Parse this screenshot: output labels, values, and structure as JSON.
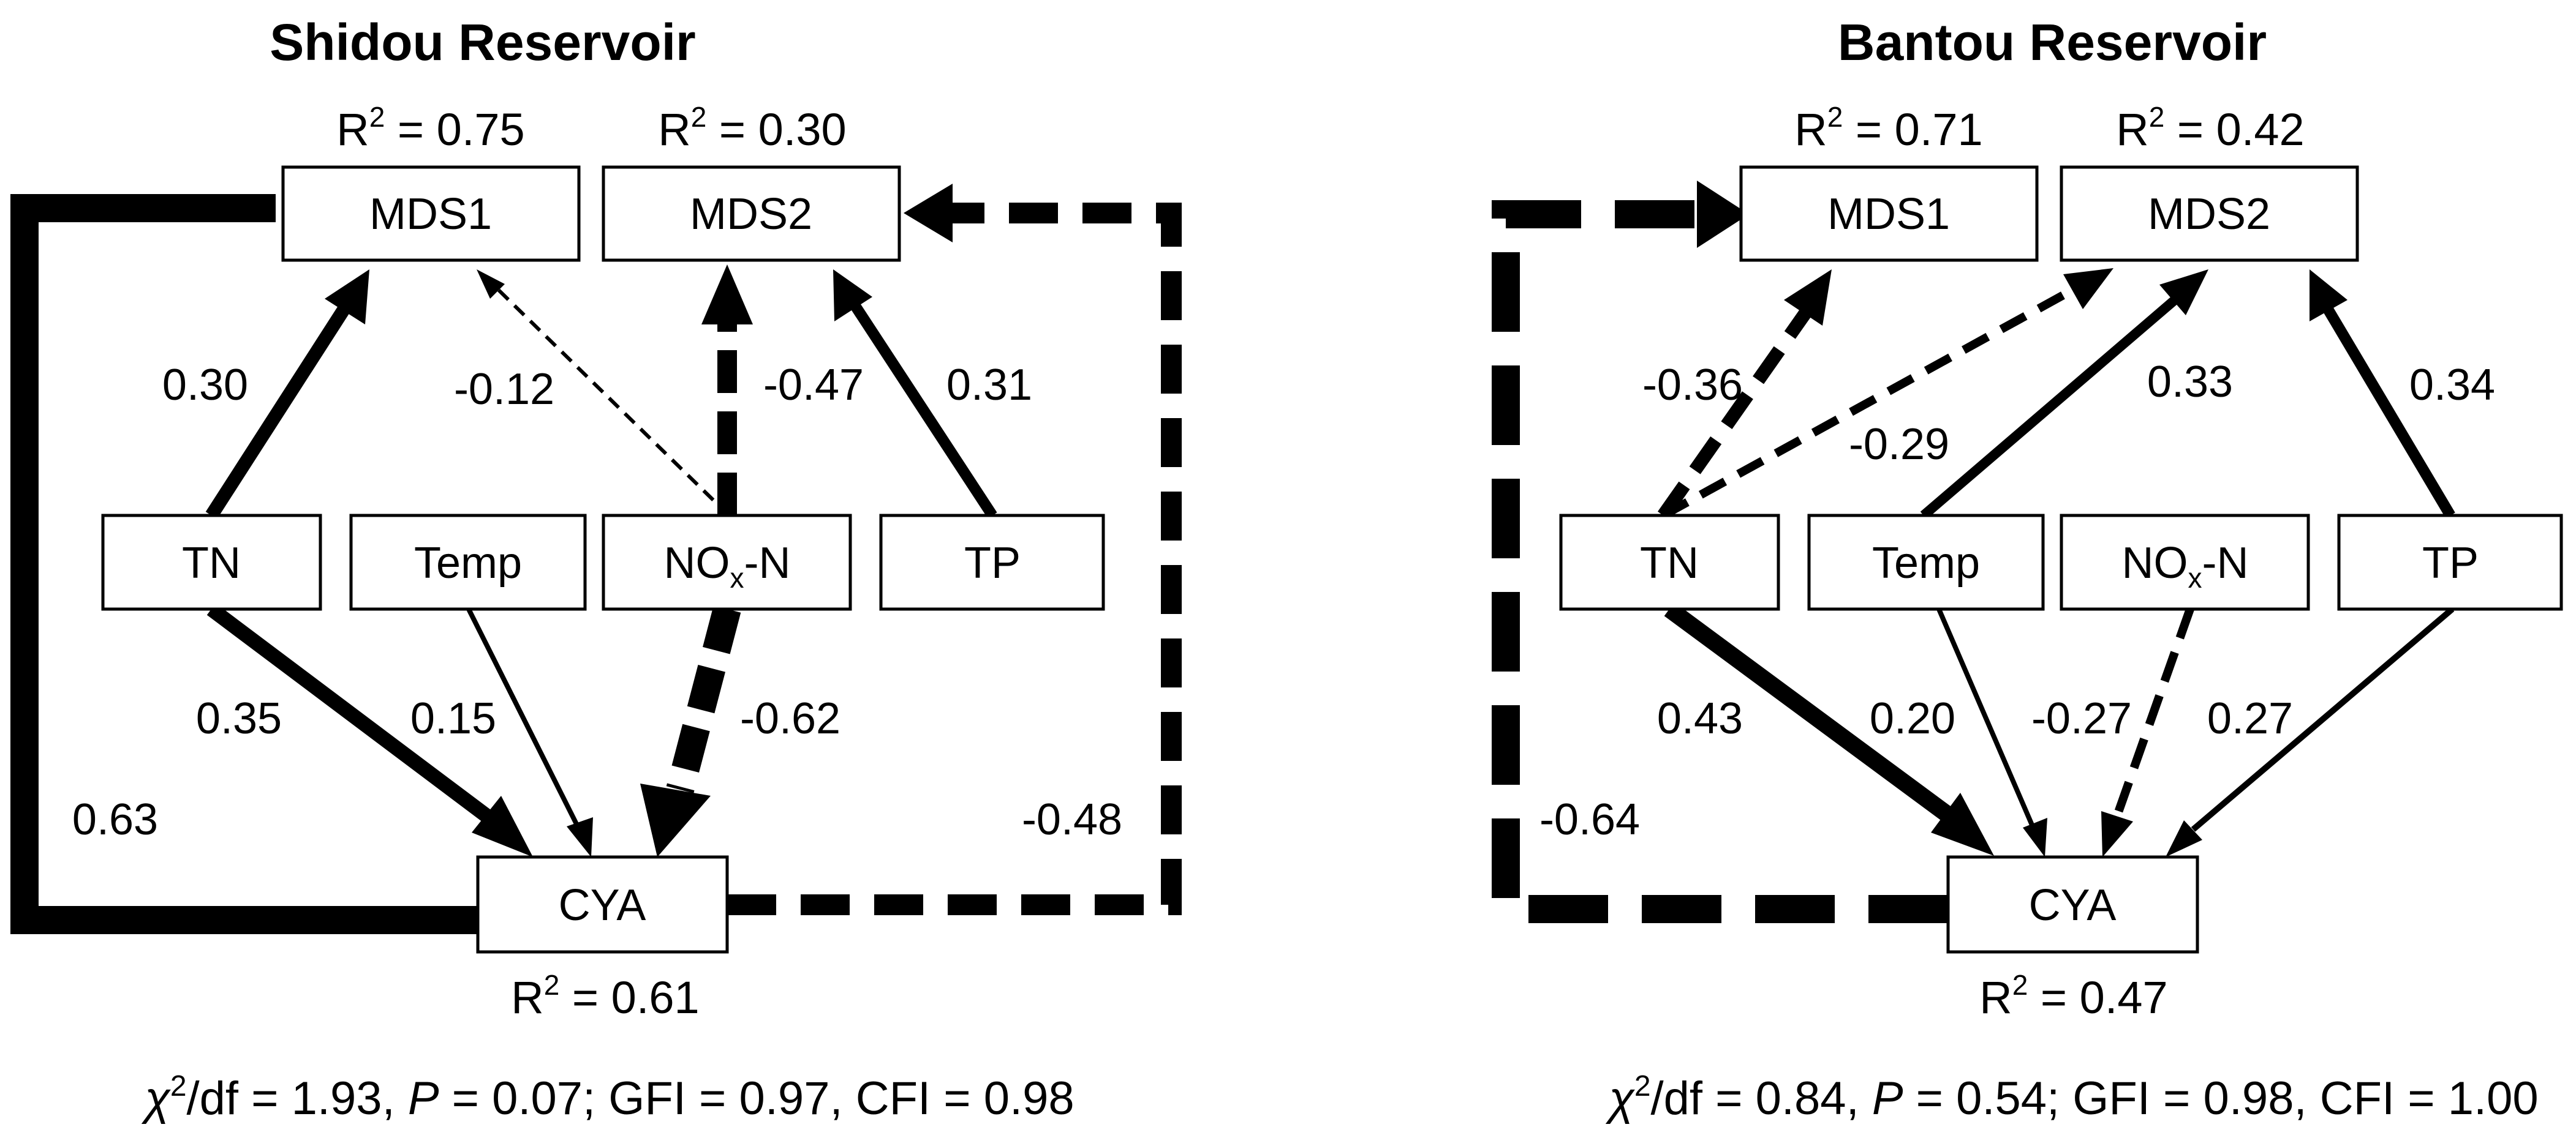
{
  "panels": [
    {
      "title": "Shidou Reservoir",
      "nodes": {
        "mds1": "MDS1",
        "mds2": "MDS2",
        "tn": "TN",
        "temp": "Temp",
        "nox_prefix": "NO",
        "nox_sub": "x",
        "nox_suffix": "-N",
        "tp": "TP",
        "cya": "CYA"
      },
      "r2": {
        "mds1": "0.75",
        "mds2": "0.30",
        "cya": "0.61"
      },
      "coefficients": {
        "tn_mds1": "0.30",
        "nox_mds1": "-0.12",
        "nox_mds2": "-0.47",
        "tp_mds2": "0.31",
        "tn_cya": "0.35",
        "temp_cya": "0.15",
        "nox_cya": "-0.62",
        "cya_mds1": "0.63",
        "cya_mds2": "-0.48"
      },
      "fit": {
        "chi_sym": "χ",
        "chi_sup": "2",
        "chi_rest": "/df = 1.93, ",
        "p_sym": "P",
        "p_rest": " = 0.07; GFI = 0.97, CFI = 0.98"
      }
    },
    {
      "title": "Bantou Reservoir",
      "nodes": {
        "mds1": "MDS1",
        "mds2": "MDS2",
        "tn": "TN",
        "temp": "Temp",
        "nox_prefix": "NO",
        "nox_sub": "x",
        "nox_suffix": "-N",
        "tp": "TP",
        "cya": "CYA"
      },
      "r2": {
        "mds1": "0.71",
        "mds2": "0.42",
        "cya": "0.47"
      },
      "coefficients": {
        "tn_mds1": "-0.36",
        "tn_mds2": "-0.29",
        "temp_mds2": "0.33",
        "tp_mds2": "0.34",
        "tn_cya": "0.43",
        "temp_cya": "0.20",
        "nox_cya": "-0.27",
        "tp_cya": "0.27",
        "cya_mds1": "-0.64"
      },
      "fit": {
        "chi_sym": "χ",
        "chi_sup": "2",
        "chi_rest": "/df = 0.84, ",
        "p_sym": "P",
        "p_rest": " = 0.54; GFI = 0.98, CFI = 1.00"
      }
    }
  ],
  "r2_prefix": "R",
  "r2_sup": "2",
  "r2_eq": " = "
}
